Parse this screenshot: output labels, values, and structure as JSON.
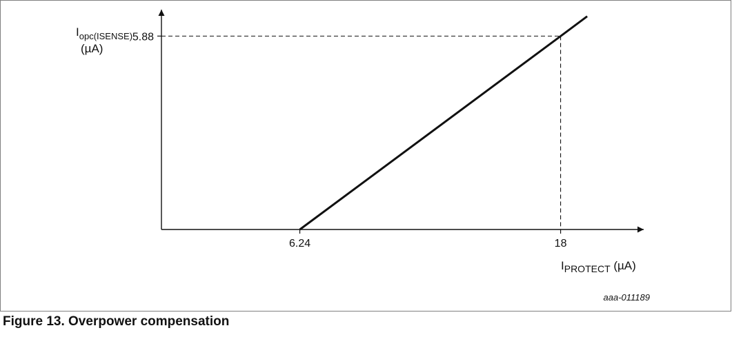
{
  "figure": {
    "caption": "Figure 13.  Overpower compensation",
    "figure_id": "aaa-011189"
  },
  "chart_data": {
    "type": "line",
    "ylabel": {
      "main": "I",
      "subscript": "opc(ISENSE)",
      "unit": "(µA)"
    },
    "xlabel": {
      "main": "I",
      "subscript": "PROTECT",
      "unit": " (µA)"
    },
    "xlim": [
      0,
      21
    ],
    "ylim": [
      0,
      6.6
    ],
    "x_ticks": [
      6.24,
      18
    ],
    "y_ticks": [
      5.88
    ],
    "x_tick_labels": [
      "6.24",
      "18"
    ],
    "y_tick_labels": [
      "5.88"
    ],
    "series": [
      {
        "x": [
          6.24,
          18,
          19.2
        ],
        "y": [
          0,
          5.88,
          6.48
        ]
      }
    ],
    "reference_point": {
      "x": 18,
      "y": 5.88
    },
    "grid": false
  }
}
